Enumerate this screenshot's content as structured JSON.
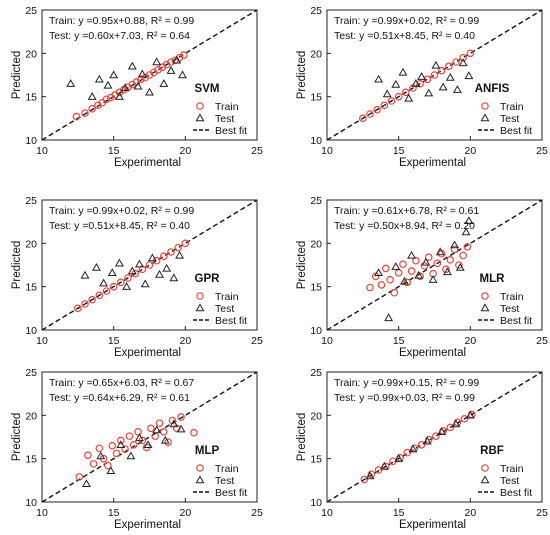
{
  "chart_data": [
    {
      "type": "scatter",
      "model_label": "SVM",
      "train_eq": "Train: y =0.95x+0.88, R² = 0.99",
      "test_eq": "Test: y =0.60x+7.03, R² = 0.64",
      "xlabel": "Experimental",
      "ylabel": "Predicted",
      "xlim": [
        10,
        25
      ],
      "ylim": [
        10,
        25
      ],
      "xticks": [
        "10",
        "15",
        "20",
        "25"
      ],
      "yticks": [
        "10",
        "15",
        "20",
        "25"
      ],
      "series": [
        {
          "name": "Train",
          "marker": "circle",
          "color": "#e8453c",
          "points": [
            [
              12.4,
              12.7
            ],
            [
              13.0,
              13.1
            ],
            [
              13.5,
              13.6
            ],
            [
              13.9,
              14.0
            ],
            [
              14.2,
              14.3
            ],
            [
              14.5,
              14.7
            ],
            [
              14.8,
              14.9
            ],
            [
              15.1,
              15.2
            ],
            [
              15.4,
              15.5
            ],
            [
              15.7,
              15.8
            ],
            [
              16.0,
              16.1
            ],
            [
              16.3,
              16.4
            ],
            [
              16.6,
              16.7
            ],
            [
              16.9,
              17.0
            ],
            [
              17.2,
              17.2
            ],
            [
              17.5,
              17.5
            ],
            [
              17.8,
              17.8
            ],
            [
              18.1,
              18.1
            ],
            [
              18.4,
              18.4
            ],
            [
              18.7,
              18.7
            ],
            [
              19.0,
              19.0
            ],
            [
              19.3,
              19.2
            ],
            [
              19.6,
              19.5
            ],
            [
              19.9,
              19.8
            ]
          ]
        },
        {
          "name": "Test",
          "marker": "triangle",
          "color": "#222222",
          "points": [
            [
              12.0,
              16.5
            ],
            [
              13.5,
              15.0
            ],
            [
              14.0,
              17.0
            ],
            [
              14.6,
              16.3
            ],
            [
              15.0,
              17.5
            ],
            [
              15.4,
              15.0
            ],
            [
              15.8,
              16.0
            ],
            [
              16.3,
              18.5
            ],
            [
              16.7,
              16.2
            ],
            [
              17.0,
              17.6
            ],
            [
              17.5,
              15.5
            ],
            [
              18.0,
              19.0
            ],
            [
              18.5,
              16.5
            ],
            [
              19.0,
              18.0
            ],
            [
              19.4,
              19.2
            ],
            [
              19.8,
              17.5
            ]
          ]
        }
      ],
      "best_fit": [
        [
          10,
          10
        ],
        [
          25,
          25
        ]
      ],
      "legend": [
        "Train",
        "Test",
        "Best fit"
      ],
      "legend_position": "bottom-right"
    },
    {
      "type": "scatter",
      "model_label": "ANFIS",
      "train_eq": "Train: y =0.99x+0.02, R² = 0.99",
      "test_eq": "Test: y =0.51x+8.45, R² = 0.40",
      "xlabel": "Experimental",
      "ylabel": "Predicted",
      "xlim": [
        10,
        25
      ],
      "ylim": [
        10,
        25
      ],
      "xticks": [
        "10",
        "15",
        "20",
        "25"
      ],
      "yticks": [
        "10",
        "15",
        "20",
        "25"
      ],
      "series": [
        {
          "name": "Train",
          "marker": "circle",
          "color": "#e8453c",
          "points": [
            [
              12.5,
              12.5
            ],
            [
              13.0,
              13.0
            ],
            [
              13.5,
              13.5
            ],
            [
              14.0,
              14.0
            ],
            [
              14.5,
              14.5
            ],
            [
              15.0,
              15.0
            ],
            [
              15.5,
              15.5
            ],
            [
              16.0,
              16.0
            ],
            [
              16.5,
              16.5
            ],
            [
              17.0,
              17.0
            ],
            [
              17.5,
              17.5
            ],
            [
              18.0,
              18.0
            ],
            [
              18.5,
              18.5
            ],
            [
              19.0,
              19.0
            ],
            [
              19.5,
              19.5
            ],
            [
              20.0,
              20.0
            ]
          ]
        },
        {
          "name": "Test",
          "marker": "triangle",
          "color": "#222222",
          "points": [
            [
              13.6,
              17.0
            ],
            [
              14.2,
              15.3
            ],
            [
              14.8,
              16.4
            ],
            [
              15.3,
              17.8
            ],
            [
              15.7,
              14.8
            ],
            [
              16.2,
              16.5
            ],
            [
              16.6,
              17.3
            ],
            [
              17.1,
              15.4
            ],
            [
              17.6,
              18.6
            ],
            [
              18.1,
              16.1
            ],
            [
              18.6,
              17.2
            ],
            [
              19.1,
              15.8
            ],
            [
              19.5,
              18.9
            ],
            [
              19.9,
              17.4
            ]
          ]
        }
      ],
      "best_fit": [
        [
          10,
          10
        ],
        [
          25,
          25
        ]
      ],
      "legend": [
        "Train",
        "Test",
        "Best fit"
      ],
      "legend_position": "bottom-right"
    },
    {
      "type": "scatter",
      "model_label": "GPR",
      "train_eq": "Train: y =0.99x+0.02, R² = 0.99",
      "test_eq": "Test: y =0.51x+8.45, R² = 0.40",
      "xlabel": "Experimental",
      "ylabel": "Predicted",
      "xlim": [
        10,
        25
      ],
      "ylim": [
        10,
        25
      ],
      "xticks": [
        "10",
        "15",
        "20",
        "25"
      ],
      "yticks": [
        "10",
        "15",
        "20",
        "25"
      ],
      "series": [
        {
          "name": "Train",
          "marker": "circle",
          "color": "#e8453c",
          "points": [
            [
              12.5,
              12.5
            ],
            [
              13.0,
              13.0
            ],
            [
              13.5,
              13.5
            ],
            [
              14.0,
              14.0
            ],
            [
              14.5,
              14.5
            ],
            [
              15.0,
              15.0
            ],
            [
              15.5,
              15.5
            ],
            [
              16.0,
              16.0
            ],
            [
              16.5,
              16.5
            ],
            [
              17.0,
              17.0
            ],
            [
              17.5,
              17.5
            ],
            [
              18.0,
              18.0
            ],
            [
              18.5,
              18.5
            ],
            [
              19.0,
              19.0
            ],
            [
              19.5,
              19.5
            ],
            [
              20.0,
              20.0
            ]
          ]
        },
        {
          "name": "Test",
          "marker": "triangle",
          "color": "#222222",
          "points": [
            [
              13.0,
              16.3
            ],
            [
              13.8,
              17.2
            ],
            [
              14.3,
              15.4
            ],
            [
              14.9,
              16.6
            ],
            [
              15.4,
              17.7
            ],
            [
              15.9,
              15.0
            ],
            [
              16.3,
              16.8
            ],
            [
              16.8,
              17.6
            ],
            [
              17.2,
              15.3
            ],
            [
              17.7,
              18.3
            ],
            [
              18.2,
              16.4
            ],
            [
              18.7,
              17.1
            ],
            [
              19.2,
              16.0
            ],
            [
              19.6,
              18.6
            ]
          ]
        }
      ],
      "best_fit": [
        [
          10,
          10
        ],
        [
          25,
          25
        ]
      ],
      "legend": [
        "Train",
        "Test",
        "Best fit"
      ],
      "legend_position": "bottom-right"
    },
    {
      "type": "scatter",
      "model_label": "MLR",
      "train_eq": "Train: y =0.61x+6.78, R² = 0.61",
      "test_eq": "Test: y =0.50x+8.94, R² = 0.20",
      "xlabel": "Experimental",
      "ylabel": "Predicted",
      "xlim": [
        10,
        25
      ],
      "ylim": [
        10,
        25
      ],
      "xticks": [
        "10",
        "15",
        "20",
        "25"
      ],
      "yticks": [
        "10",
        "15",
        "20",
        "25"
      ],
      "series": [
        {
          "name": "Train",
          "marker": "circle",
          "color": "#e8453c",
          "points": [
            [
              13.0,
              14.9
            ],
            [
              13.4,
              16.2
            ],
            [
              13.8,
              15.2
            ],
            [
              14.1,
              17.1
            ],
            [
              14.4,
              15.8
            ],
            [
              14.7,
              14.3
            ],
            [
              15.0,
              16.6
            ],
            [
              15.3,
              17.6
            ],
            [
              15.6,
              15.5
            ],
            [
              15.9,
              16.8
            ],
            [
              16.2,
              18.0
            ],
            [
              16.5,
              16.2
            ],
            [
              16.8,
              17.4
            ],
            [
              17.1,
              18.4
            ],
            [
              17.4,
              16.5
            ],
            [
              17.7,
              17.7
            ],
            [
              18.0,
              18.8
            ],
            [
              18.3,
              17.0
            ],
            [
              18.6,
              18.1
            ],
            [
              18.9,
              19.3
            ],
            [
              19.2,
              17.5
            ],
            [
              19.5,
              18.6
            ],
            [
              19.8,
              19.6
            ]
          ]
        },
        {
          "name": "Test",
          "marker": "triangle",
          "color": "#222222",
          "points": [
            [
              13.6,
              16.6
            ],
            [
              14.3,
              11.4
            ],
            [
              14.8,
              17.3
            ],
            [
              15.4,
              15.6
            ],
            [
              15.9,
              18.6
            ],
            [
              16.4,
              16.3
            ],
            [
              16.9,
              17.8
            ],
            [
              17.4,
              15.8
            ],
            [
              17.9,
              19.0
            ],
            [
              18.4,
              16.7
            ],
            [
              18.9,
              19.8
            ],
            [
              19.3,
              17.2
            ],
            [
              19.7,
              21.3
            ],
            [
              19.9,
              22.6
            ]
          ]
        }
      ],
      "best_fit": [
        [
          10,
          10
        ],
        [
          25,
          25
        ]
      ],
      "legend": [
        "Train",
        "Test",
        "Best fit"
      ],
      "legend_position": "bottom-right"
    },
    {
      "type": "scatter",
      "model_label": "MLP",
      "train_eq": "Train: y =0.65x+6.03, R² = 0.67",
      "test_eq": "Test: y =0.64x+6.29, R² = 0.61",
      "xlabel": "Experimental",
      "ylabel": "Predicted",
      "xlim": [
        10,
        25
      ],
      "ylim": [
        10,
        25
      ],
      "xticks": [
        "10",
        "15",
        "20",
        "25"
      ],
      "yticks": [
        "10",
        "15",
        "20",
        "25"
      ],
      "series": [
        {
          "name": "Train",
          "marker": "circle",
          "color": "#e8453c",
          "points": [
            [
              12.6,
              12.9
            ],
            [
              13.2,
              15.4
            ],
            [
              13.6,
              14.4
            ],
            [
              14.0,
              16.2
            ],
            [
              14.3,
              15.0
            ],
            [
              14.6,
              14.2
            ],
            [
              14.9,
              16.5
            ],
            [
              15.2,
              15.6
            ],
            [
              15.5,
              17.1
            ],
            [
              15.8,
              16.1
            ],
            [
              16.1,
              17.6
            ],
            [
              16.4,
              16.6
            ],
            [
              16.7,
              18.1
            ],
            [
              17.0,
              17.1
            ],
            [
              17.3,
              16.3
            ],
            [
              17.6,
              18.5
            ],
            [
              17.9,
              17.6
            ],
            [
              18.2,
              19.1
            ],
            [
              18.5,
              18.1
            ],
            [
              18.8,
              16.9
            ],
            [
              19.1,
              19.4
            ],
            [
              19.4,
              18.5
            ],
            [
              19.7,
              19.8
            ],
            [
              20.6,
              18.0
            ]
          ]
        },
        {
          "name": "Test",
          "marker": "triangle",
          "color": "#222222",
          "points": [
            [
              13.1,
              12.1
            ],
            [
              14.1,
              15.3
            ],
            [
              14.8,
              13.6
            ],
            [
              15.5,
              16.6
            ],
            [
              16.2,
              15.3
            ],
            [
              16.8,
              17.4
            ],
            [
              17.4,
              16.6
            ],
            [
              18.0,
              18.3
            ],
            [
              18.6,
              17.1
            ],
            [
              19.2,
              19.0
            ],
            [
              19.7,
              18.4
            ]
          ]
        }
      ],
      "best_fit": [
        [
          10,
          10
        ],
        [
          25,
          25
        ]
      ],
      "legend": [
        "Train",
        "Test",
        "Best fit"
      ],
      "legend_position": "bottom-right"
    },
    {
      "type": "scatter",
      "model_label": "RBF",
      "train_eq": "Train: y =0.99x+0.15, R² = 0.99",
      "test_eq": "Test: y =0.99x+0.03, R² = 0.99",
      "xlabel": "Experimental",
      "ylabel": "Predicted",
      "xlim": [
        10,
        25
      ],
      "ylim": [
        10,
        25
      ],
      "xticks": [
        "10",
        "15",
        "20",
        "25"
      ],
      "yticks": [
        "10",
        "15",
        "20",
        "25"
      ],
      "series": [
        {
          "name": "Train",
          "marker": "circle",
          "color": "#e8453c",
          "points": [
            [
              12.6,
              12.6
            ],
            [
              13.1,
              13.2
            ],
            [
              13.6,
              13.7
            ],
            [
              14.1,
              14.1
            ],
            [
              14.6,
              14.7
            ],
            [
              15.1,
              15.1
            ],
            [
              15.6,
              15.7
            ],
            [
              16.1,
              16.2
            ],
            [
              16.6,
              16.6
            ],
            [
              17.1,
              17.2
            ],
            [
              17.6,
              17.6
            ],
            [
              18.1,
              18.2
            ],
            [
              18.6,
              18.6
            ],
            [
              19.1,
              19.2
            ],
            [
              19.6,
              19.6
            ],
            [
              20.1,
              20.1
            ]
          ]
        },
        {
          "name": "Test",
          "marker": "triangle",
          "color": "#222222",
          "points": [
            [
              13.0,
              13.0
            ],
            [
              14.0,
              14.1
            ],
            [
              15.0,
              15.0
            ],
            [
              16.0,
              16.1
            ],
            [
              17.0,
              17.0
            ],
            [
              18.0,
              18.1
            ],
            [
              19.0,
              19.0
            ],
            [
              20.0,
              20.0
            ]
          ]
        }
      ],
      "best_fit": [
        [
          10,
          10
        ],
        [
          25,
          25
        ]
      ],
      "legend": [
        "Train",
        "Test",
        "Best fit"
      ],
      "legend_position": "bottom-right"
    }
  ]
}
